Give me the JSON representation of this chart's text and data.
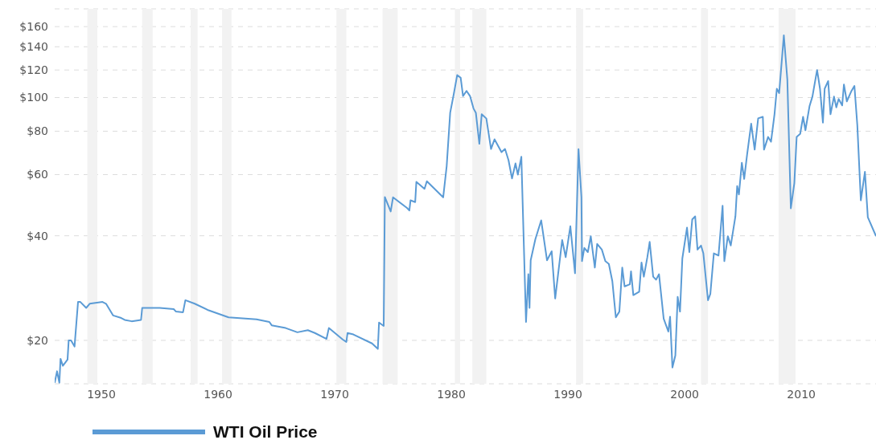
{
  "chart_data": {
    "type": "line",
    "x": [
      1946.0,
      1946.2,
      1946.4,
      1946.5,
      1946.7,
      1947.1,
      1947.2,
      1947.4,
      1947.7,
      1948.0,
      1948.2,
      1948.7,
      1949.0,
      1950.1,
      1950.4,
      1951.0,
      1951.7,
      1952.0,
      1952.6,
      1953.4,
      1953.5,
      1955.0,
      1956.2,
      1956.4,
      1957.0,
      1957.2,
      1958.0,
      1959.2,
      1960.9,
      1963.3,
      1964.4,
      1964.6,
      1965.8,
      1966.8,
      1967.7,
      1968.3,
      1969.3,
      1969.5,
      1970.7,
      1971.0,
      1971.1,
      1971.6,
      1973.2,
      1973.7,
      1973.8,
      1974.2,
      1974.3,
      1974.8,
      1975.0,
      1976.2,
      1976.4,
      1976.5,
      1976.9,
      1977.0,
      1977.7,
      1977.9,
      1979.3,
      1979.6,
      1979.9,
      1980.2,
      1980.5,
      1980.8,
      1981.0,
      1981.3,
      1981.6,
      1981.9,
      1982.1,
      1982.4,
      1982.6,
      1983.0,
      1983.4,
      1983.7,
      1984.3,
      1984.6,
      1984.9,
      1985.2,
      1985.5,
      1985.7,
      1986.0,
      1986.4,
      1986.6,
      1986.7,
      1986.8,
      1987.2,
      1987.7,
      1988.2,
      1988.6,
      1988.9,
      1989.5,
      1989.8,
      1990.2,
      1990.6,
      1990.9,
      1991.15,
      1991.2,
      1991.4,
      1991.7,
      1991.95,
      1992.3,
      1992.5,
      1992.9,
      1993.2,
      1993.5,
      1993.8,
      1994.1,
      1994.4,
      1994.65,
      1994.85,
      1995.3,
      1995.4,
      1995.6,
      1996.1,
      1996.3,
      1996.5,
      1996.8,
      1997.0,
      1997.3,
      1997.55,
      1997.8,
      1998.2,
      1998.6,
      1998.75,
      1998.95,
      1999.2,
      1999.4,
      1999.6,
      1999.8,
      2000.2,
      2000.4,
      2000.65,
      2000.9,
      2001.1,
      2001.4,
      2001.6,
      2002.0,
      2002.2,
      2002.5,
      2002.9,
      2003.25,
      2003.4,
      2003.7,
      2003.95,
      2004.35,
      2004.5,
      2004.65,
      2004.9,
      2005.1,
      2005.35,
      2005.7,
      2006.0,
      2006.3,
      2006.7,
      2006.8,
      2007.15,
      2007.4,
      2007.7,
      2007.9,
      2008.1,
      2008.5,
      2008.8,
      2009.1,
      2009.4,
      2009.6,
      2009.9,
      2010.15,
      2010.35,
      2010.7,
      2010.95,
      2011.35,
      2011.6,
      2011.85,
      2012.0,
      2012.3,
      2012.5,
      2012.8,
      2013.0,
      2013.2,
      2013.5,
      2013.65,
      2013.9,
      2014.3,
      2014.55,
      2014.8,
      2015.1,
      2015.45,
      2015.7,
      2016.4
    ],
    "series": [
      {
        "name": "WTI Oil Price",
        "color": "#5b9bd5",
        "values": [
          15.1,
          16.3,
          15.1,
          17.7,
          16.9,
          17.6,
          20,
          20,
          19.2,
          25.8,
          25.8,
          24.8,
          25.5,
          25.8,
          25.5,
          23.6,
          23.2,
          22.9,
          22.7,
          22.9,
          24.8,
          24.8,
          24.6,
          24.2,
          24.1,
          26.1,
          25.5,
          24.4,
          23.3,
          23.0,
          22.6,
          22.1,
          21.7,
          21.1,
          21.4,
          21.0,
          20.2,
          21.7,
          20.1,
          19.8,
          21.0,
          20.8,
          19.6,
          18.9,
          22.5,
          22.0,
          51.7,
          47.0,
          51.6,
          48.1,
          47.3,
          50.6,
          50,
          57.2,
          54.6,
          57.4,
          51.6,
          63.5,
          90.4,
          102,
          116,
          114,
          101,
          104.5,
          101,
          93,
          90.4,
          73.6,
          89.5,
          87,
          71.1,
          75.8,
          69.6,
          71.1,
          66,
          58.5,
          64.6,
          60,
          67.5,
          22.6,
          31,
          24.8,
          34,
          39.1,
          44.3,
          34,
          36.1,
          26.4,
          38.9,
          34.7,
          42.6,
          31.2,
          71,
          51.6,
          33.8,
          36.9,
          35.9,
          39.9,
          32.4,
          37.9,
          36.5,
          33.8,
          33.2,
          29.6,
          23.3,
          24.2,
          32.4,
          28.6,
          29,
          31.6,
          27,
          27.6,
          33.5,
          30.5,
          34.7,
          38.4,
          30.5,
          29.9,
          31,
          23.1,
          21.2,
          23.4,
          16.7,
          18.1,
          26.7,
          24.2,
          34.4,
          42.2,
          35.9,
          44.6,
          45.5,
          36.5,
          37.5,
          35.6,
          26.1,
          27.2,
          35.6,
          35.1,
          48.8,
          33.8,
          39.9,
          37.5,
          45.5,
          55.6,
          52.6,
          64.9,
          58.3,
          68.5,
          84.1,
          70.8,
          87.1,
          88,
          70.8,
          77,
          74.6,
          89.5,
          106,
          103,
          151,
          112.7,
          48,
          56.7,
          77,
          78.6,
          88,
          80.5,
          94.4,
          100.6,
          120,
          106,
          84.7,
          106,
          111.5,
          89.5,
          100.6,
          93.7,
          99,
          94.9,
          109,
          97.5,
          104.5,
          108,
          83.1,
          50.6,
          61.1,
          45.2,
          39.9
        ]
      }
    ],
    "xlim": [
      1946,
      2016.4
    ],
    "xticks": [
      1950,
      1960,
      1970,
      1980,
      1990,
      2000,
      2010
    ],
    "ylim": [
      15,
      180
    ],
    "yticks": [
      {
        "value": 15,
        "label": null
      },
      {
        "value": 20,
        "label": "$20"
      },
      {
        "value": 40,
        "label": "$40"
      },
      {
        "value": 60,
        "label": "$60"
      },
      {
        "value": 80,
        "label": "$80"
      },
      {
        "value": 100,
        "label": "$100"
      },
      {
        "value": 120,
        "label": "$120"
      },
      {
        "value": 140,
        "label": "$140"
      },
      {
        "value": 160,
        "label": "$160"
      },
      {
        "value": 180,
        "label": null
      }
    ],
    "log": "y",
    "grid": "y",
    "legend": "bottom",
    "marker": "none",
    "line_style": "solid",
    "bands": [
      {
        "axis": "x",
        "from": 1948.8,
        "to": 1949.65,
        "color": "#f2f2f2"
      },
      {
        "axis": "x",
        "from": 1953.5,
        "to": 1954.4,
        "color": "#f2f2f2"
      },
      {
        "axis": "x",
        "from": 1957.65,
        "to": 1958.25,
        "color": "#f2f2f2"
      },
      {
        "axis": "x",
        "from": 1960.35,
        "to": 1961.15,
        "color": "#f2f2f2"
      },
      {
        "axis": "x",
        "from": 1970.15,
        "to": 1971.0,
        "color": "#f2f2f2"
      },
      {
        "axis": "x",
        "from": 1974.1,
        "to": 1975.4,
        "color": "#f2f2f2"
      },
      {
        "axis": "x",
        "from": 1980.3,
        "to": 1980.75,
        "color": "#f2f2f2"
      },
      {
        "axis": "x",
        "from": 1981.8,
        "to": 1983.0,
        "color": "#f2f2f2"
      },
      {
        "axis": "x",
        "from": 1990.7,
        "to": 1991.3,
        "color": "#f2f2f2"
      },
      {
        "axis": "x",
        "from": 2001.4,
        "to": 2002.0,
        "color": "#f2f2f2"
      },
      {
        "axis": "x",
        "from": 2008.05,
        "to": 2009.5,
        "color": "#f2f2f2"
      }
    ]
  }
}
